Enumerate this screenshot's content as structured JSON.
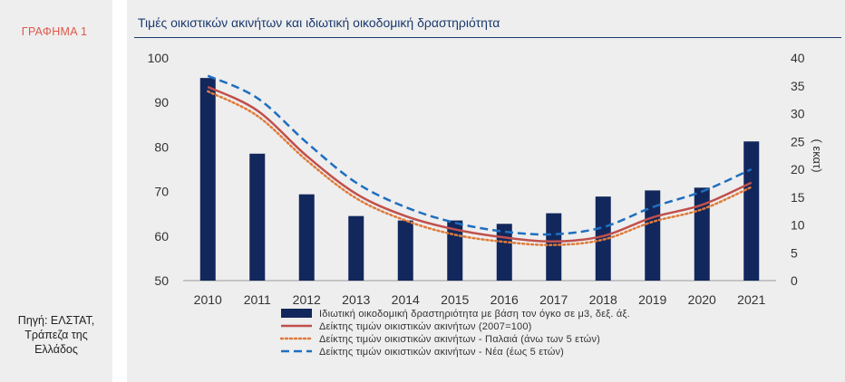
{
  "sidebar": {
    "graph_label": "ΓΡΑΦΗΜΑ 1",
    "source_lines": [
      "Πηγή: ΕΛΣΤΑΤ,",
      "Τράπεζα της",
      "Ελλάδος"
    ]
  },
  "chart_data": {
    "type": "bar",
    "title": "Τιμές οικιστικών ακινήτων και ιδιωτική οικοδομική δραστηριότητα",
    "categories": [
      "2010",
      "2011",
      "2012",
      "2013",
      "2014",
      "2015",
      "2016",
      "2017",
      "2018",
      "2019",
      "2020",
      "2021"
    ],
    "left_axis": {
      "ylim": [
        50,
        100
      ],
      "ticks": [
        50,
        60,
        70,
        80,
        90,
        100
      ]
    },
    "right_axis": {
      "label": "( εκατ)",
      "ylim": [
        0,
        40
      ],
      "ticks": [
        0,
        5,
        10,
        15,
        20,
        25,
        30,
        35,
        40
      ]
    },
    "series": [
      {
        "name": "Ιδιωτική οικοδομική δραστηριότητα με βάση τον όγκο σε μ3, δεξ. άξ.",
        "type": "bar",
        "axis": "right",
        "color": "#12275c",
        "values": [
          36.4,
          22.8,
          15.5,
          11.6,
          10.8,
          10.8,
          10.2,
          12.1,
          15.1,
          16.2,
          16.7,
          25.0
        ]
      },
      {
        "name": "Δείκτης τιμών οικιστικών ακινήτων (2007=100)",
        "type": "line",
        "axis": "left",
        "color": "#c0504d",
        "style": "solid",
        "values": [
          93.5,
          88.2,
          78.0,
          69.5,
          64.5,
          61.5,
          59.7,
          58.8,
          60.0,
          64.2,
          67.0,
          72.0
        ]
      },
      {
        "name": "Δείκτης τιμών οικιστικών ακινήτων - Παλαιά (άνω των 5 ετών)",
        "type": "line",
        "axis": "left",
        "color": "#e07b39",
        "style": "dotted",
        "values": [
          92.5,
          87.0,
          77.0,
          68.5,
          63.5,
          60.3,
          58.7,
          58.0,
          59.2,
          63.2,
          66.0,
          71.0
        ]
      },
      {
        "name": "Δείκτης τιμών οικιστικών ακινήτων - Νέα (έως 5 ετών)",
        "type": "line",
        "axis": "left",
        "color": "#1f6fc0",
        "style": "dashed",
        "values": [
          96.0,
          91.0,
          81.0,
          72.0,
          66.5,
          63.0,
          61.0,
          60.4,
          62.0,
          66.5,
          70.0,
          75.0
        ]
      }
    ],
    "legend_position": "bottom",
    "grid": false
  }
}
